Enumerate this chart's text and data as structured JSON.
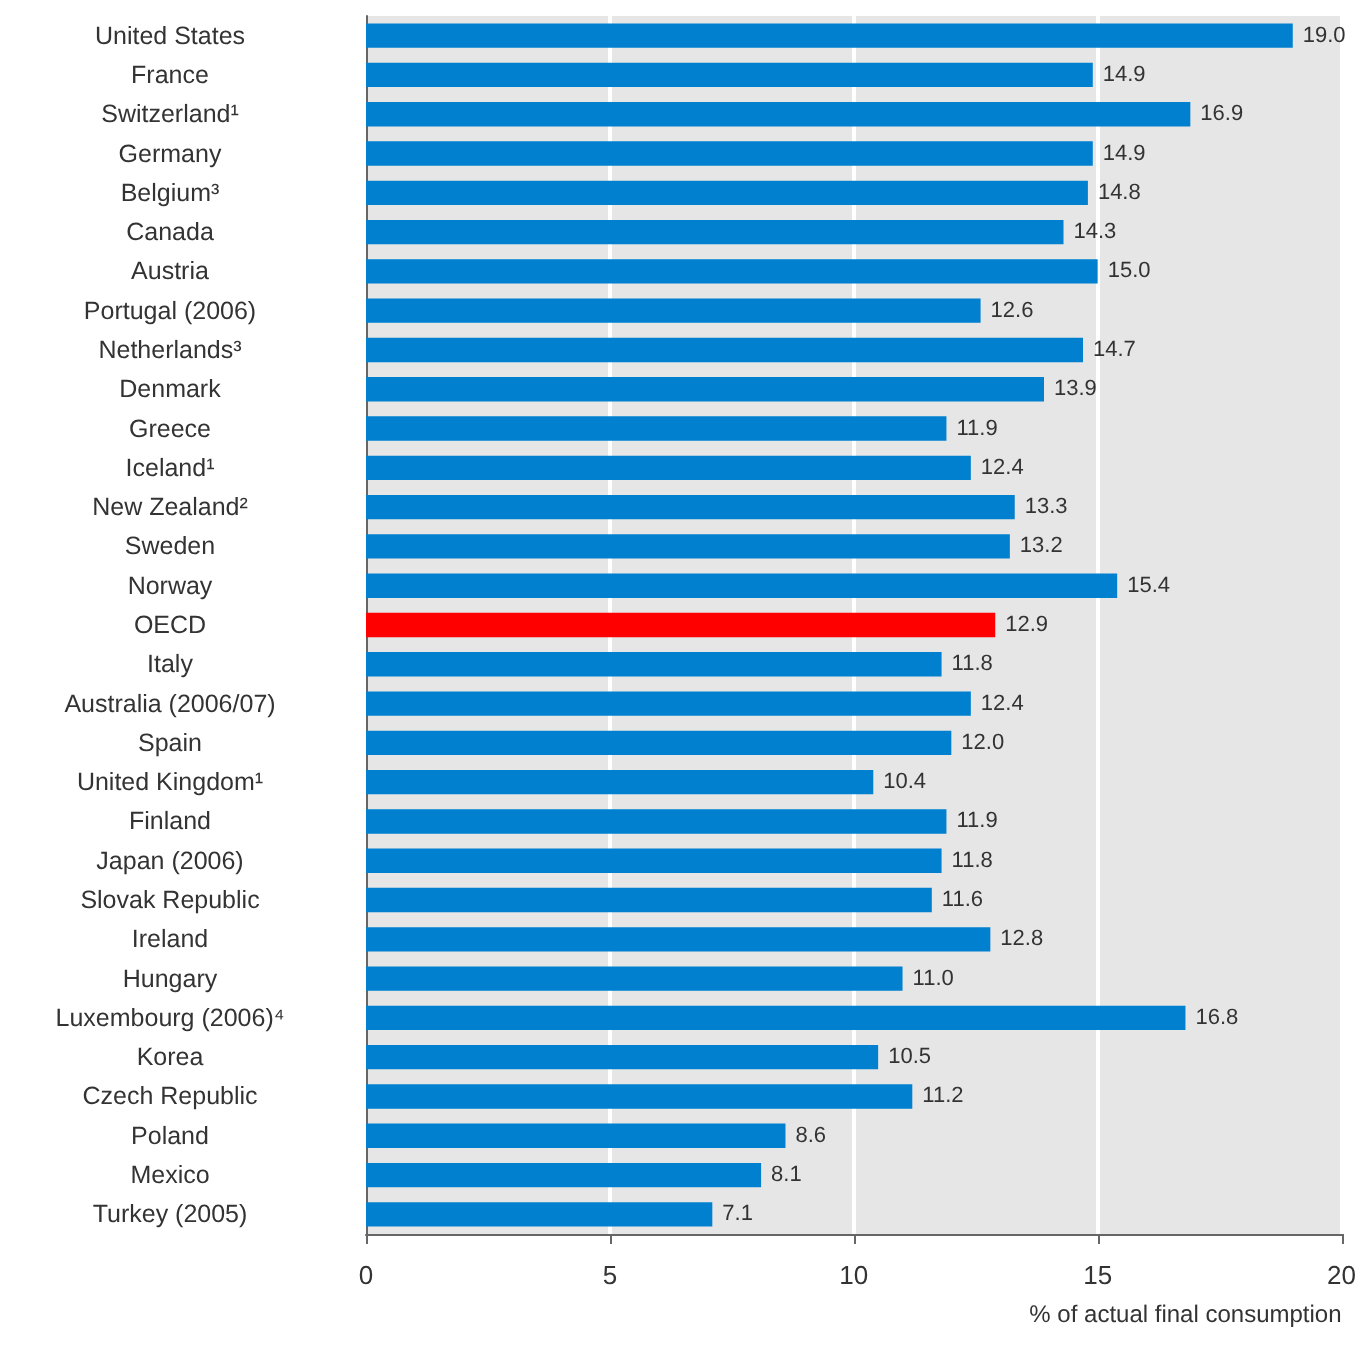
{
  "chart_data": {
    "type": "bar",
    "orientation": "horizontal",
    "xlabel": "% of actual final consumption",
    "categories": [
      "United States",
      "France",
      "Switzerland¹",
      "Germany",
      "Belgium³",
      "Canada",
      "Austria",
      "Portugal (2006)",
      "Netherlands³",
      "Denmark",
      "Greece",
      "Iceland¹",
      "New Zealand²",
      "Sweden",
      "Norway",
      "OECD",
      "Italy",
      "Australia (2006/07)",
      "Spain",
      "United Kingdom¹",
      "Finland",
      "Japan (2006)",
      "Slovak Republic",
      "Ireland",
      "Hungary",
      "Luxembourg (2006)⁴",
      "Korea",
      "Czech Republic",
      "Poland",
      "Mexico",
      "Turkey (2005)"
    ],
    "values": [
      19.0,
      14.9,
      16.9,
      14.9,
      14.8,
      14.3,
      15.0,
      12.6,
      14.7,
      13.9,
      11.9,
      12.4,
      13.3,
      13.2,
      15.4,
      12.9,
      11.8,
      12.4,
      12.0,
      10.4,
      11.9,
      11.8,
      11.6,
      12.8,
      11.0,
      16.8,
      10.5,
      11.2,
      8.6,
      8.1,
      7.1
    ],
    "colors": [
      "#0080cf",
      "#0080cf",
      "#0080cf",
      "#0080cf",
      "#0080cf",
      "#0080cf",
      "#0080cf",
      "#0080cf",
      "#0080cf",
      "#0080cf",
      "#0080cf",
      "#0080cf",
      "#0080cf",
      "#0080cf",
      "#0080cf",
      "#ff0000",
      "#0080cf",
      "#0080cf",
      "#0080cf",
      "#0080cf",
      "#0080cf",
      "#0080cf",
      "#0080cf",
      "#0080cf",
      "#0080cf",
      "#0080cf",
      "#0080cf",
      "#0080cf",
      "#0080cf",
      "#0080cf",
      "#0080cf"
    ],
    "xlim": [
      0,
      20
    ],
    "xticks": [
      0,
      5,
      10,
      15,
      20
    ],
    "grid": "x",
    "value_labels": [
      "19.0",
      "14.9",
      "16.9",
      "14.9",
      "14.8",
      "14.3",
      "15.0",
      "12.6",
      "14.7",
      "13.9",
      "11.9",
      "12.4",
      "13.3",
      "13.2",
      "15.4",
      "12.9",
      "11.8",
      "12.4",
      "12.0",
      "10.4",
      "11.9",
      "11.8",
      "11.6",
      "12.8",
      "11.0",
      "16.8",
      "10.5",
      "11.2",
      "8.6",
      "8.1",
      "7.1"
    ]
  }
}
